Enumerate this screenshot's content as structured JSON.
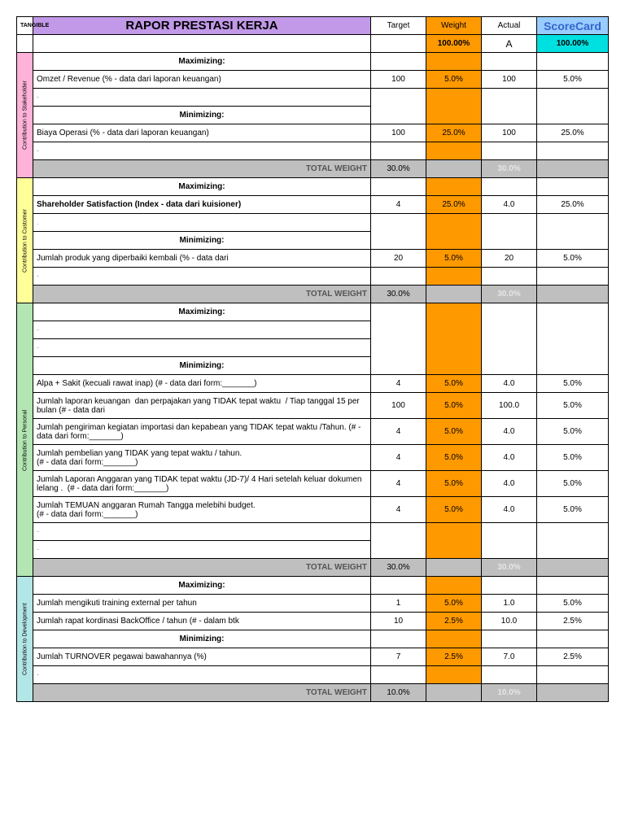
{
  "header": {
    "tangible": "TANGIBLE",
    "title": "RAPOR PRESTASI KERJA",
    "target": "Target",
    "weight": "Weight",
    "actual": "Actual",
    "scorecard": "ScoreCard"
  },
  "summary": {
    "weight": "100.00%",
    "actual": "A",
    "score": "100.00%"
  },
  "labels": {
    "max": "Maximizing:",
    "min": "Minimizing:",
    "total": "TOTAL WEIGHT"
  },
  "colors": {
    "title_bg": "#c299e8",
    "weight_bg": "#ff9900",
    "score_hdr_bg": "#99ccff",
    "score_hdr_text": "#3366cc",
    "summary_score_bg": "#00e0e0",
    "total_bg": "#bfbfbf",
    "ghost_text": "#e6e6e6",
    "side_pink": "#ffb3d9",
    "side_yellow": "#ffff99",
    "side_green": "#b3e6b3",
    "side_cyan": "#b3e6e6"
  },
  "sections": [
    {
      "label": "Contribution to Stakeholder",
      "side_class": "side-pink",
      "rows": [
        {
          "type": "hdr",
          "text": "Maximizing:"
        },
        {
          "type": "item",
          "desc": "Omzet / Revenue (% - data dari laporan keuangan)",
          "target": "100",
          "weight": "5.0%",
          "actual": "100",
          "score": "5.0%"
        },
        {
          "type": "blank"
        },
        {
          "type": "hdr",
          "text": "Minimizing:"
        },
        {
          "type": "item",
          "desc": "Biaya Operasi (% - data dari laporan keuangan)",
          "target": "100",
          "weight": "25.0%",
          "actual": "100",
          "score": "25.0%"
        },
        {
          "type": "blank"
        }
      ],
      "total": {
        "weight": "30.0%",
        "ghost": "30.0%"
      }
    },
    {
      "label": "Contribution to Customer",
      "side_class": "side-yellow",
      "rows": [
        {
          "type": "hdr",
          "text": "Maximizing:"
        },
        {
          "type": "item",
          "desc": "Shareholder Satisfaction (Index - data dari kuisioner)",
          "target": "4",
          "weight": "25.0%",
          "actual": "4.0",
          "score": "25.0%",
          "bold": true
        },
        {
          "type": "blankdot"
        },
        {
          "type": "hdr",
          "text": "Minimizing:"
        },
        {
          "type": "item",
          "desc": "Jumlah produk yang diperbaiki kembali (% - data dari",
          "target": "20",
          "weight": "5.0%",
          "actual": "20",
          "score": "5.0%"
        },
        {
          "type": "blank"
        }
      ],
      "total": {
        "weight": "30.0%",
        "ghost": "30.0%"
      }
    },
    {
      "label": "Contribution to Personal",
      "side_class": "side-green",
      "rows": [
        {
          "type": "hdr",
          "text": "Maximizing:"
        },
        {
          "type": "blank"
        },
        {
          "type": "blank"
        },
        {
          "type": "hdr",
          "text": "Minimizing:"
        },
        {
          "type": "item",
          "desc": "Alpa + Sakit (kecuali rawat inap) (# - data dari form:_______)",
          "target": "4",
          "weight": "5.0%",
          "actual": "4.0",
          "score": "5.0%"
        },
        {
          "type": "item",
          "desc": "Jumlah laporan keuangan  dan perpajakan yang TIDAK tepat waktu  / Tiap tanggal 15 per bulan (# - data dari",
          "target": "100",
          "weight": "5.0%",
          "actual": "100.0",
          "score": "5.0%",
          "tall": true
        },
        {
          "type": "item",
          "desc": "Jumlah pengiriman kegiatan importasi dan kepabean yang TIDAK tepat waktu /Tahun. (# - data dari form:_______)",
          "target": "4",
          "weight": "5.0%",
          "actual": "4.0",
          "score": "5.0%",
          "tall": true
        },
        {
          "type": "item",
          "desc": "Jumlah pembelian yang TIDAK yang tepat waktu / tahun.\n(# - data dari form:_______)",
          "target": "4",
          "weight": "5.0%",
          "actual": "4.0",
          "score": "5.0%",
          "tall": true
        },
        {
          "type": "item",
          "desc": "Jumlah Laporan Anggaran yang TIDAK tepat waktu (JD-7)/ 4 Hari setelah keluar dokumen lelang .  (# - data dari form:_______)",
          "target": "4",
          "weight": "5.0%",
          "actual": "4.0",
          "score": "5.0%",
          "tall": true
        },
        {
          "type": "item",
          "desc": "Jumlah TEMUAN anggaran Rumah Tangga melebihi budget.\n(# - data dari form:_______)",
          "target": "4",
          "weight": "5.0%",
          "actual": "4.0",
          "score": "5.0%",
          "tall": true
        },
        {
          "type": "blank"
        },
        {
          "type": "blank"
        }
      ],
      "total": {
        "weight": "30.0%",
        "ghost": "30.0%"
      }
    },
    {
      "label": "Contribution to Development",
      "side_class": "side-cyan",
      "rows": [
        {
          "type": "hdr",
          "text": "Maximizing:"
        },
        {
          "type": "item",
          "desc": "Jumlah mengikuti training external per tahun",
          "target": "1",
          "weight": "5.0%",
          "actual": "1.0",
          "score": "5.0%"
        },
        {
          "type": "item",
          "desc": "Jumlah rapat kordinasi BackOffice / tahun (# - dalam btk",
          "target": "10",
          "weight": "2.5%",
          "actual": "10.0",
          "score": "2.5%"
        },
        {
          "type": "hdr",
          "text": "Minimizing:"
        },
        {
          "type": "item",
          "desc": "Jumlah TURNOVER pegawai bawahannya (%)",
          "target": "7",
          "weight": "2.5%",
          "actual": "7.0",
          "score": "2.5%"
        },
        {
          "type": "blank"
        }
      ],
      "total": {
        "weight": "10.0%",
        "ghost": "10.0%"
      }
    }
  ]
}
